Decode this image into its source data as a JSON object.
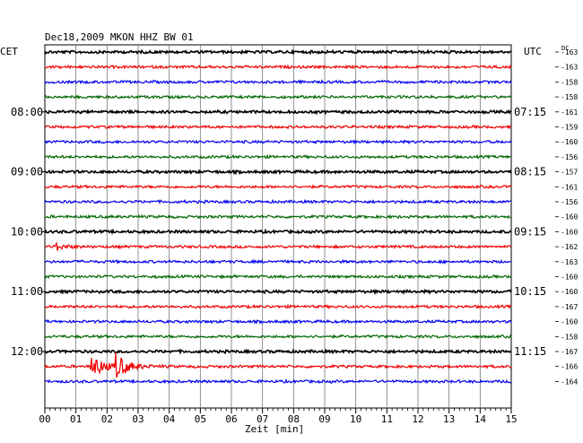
{
  "chart_data": {
    "type": "line",
    "title": "Dec18,2009   MKON HHZ BW 01",
    "left_timezone": "CET",
    "right_timezone": "UTC",
    "dc_header": "DC",
    "xlabel": "Zeit [min]",
    "xlim": [
      0,
      15
    ],
    "x_ticks": [
      "00",
      "01",
      "02",
      "03",
      "04",
      "05",
      "06",
      "07",
      "08",
      "09",
      "10",
      "11",
      "12",
      "13",
      "14",
      "15"
    ],
    "left_hour_labels": [
      {
        "label": "08:00",
        "row": 4
      },
      {
        "label": "09:00",
        "row": 8
      },
      {
        "label": "10:00",
        "row": 12
      },
      {
        "label": "11:00",
        "row": 16
      },
      {
        "label": "12:00",
        "row": 20
      }
    ],
    "right_hour_labels": [
      {
        "label": "07:15",
        "row": 4
      },
      {
        "label": "08:15",
        "row": 8
      },
      {
        "label": "09:15",
        "row": 12
      },
      {
        "label": "10:15",
        "row": 16
      },
      {
        "label": "11:15",
        "row": 20
      }
    ],
    "dc_values": [
      "-163",
      "-163",
      "-158",
      "-158",
      "-161",
      "-159",
      "-160",
      "-156",
      "-157",
      "-161",
      "-156",
      "-160",
      "-160",
      "-162",
      "-163",
      "-160",
      "-160",
      "-167",
      "-160",
      "-158",
      "-167",
      "-166",
      "-164"
    ],
    "trace_colors": [
      "#000000",
      "#ee0000",
      "#0000ee",
      "#006600"
    ],
    "rows": 23,
    "events": [
      {
        "row": 13,
        "x_min": 0.25,
        "amplitude": "small"
      },
      {
        "row": 21,
        "x_min": 1.45,
        "amplitude": "large"
      },
      {
        "row": 21,
        "x_min": 2.25,
        "amplitude": "large"
      }
    ]
  }
}
